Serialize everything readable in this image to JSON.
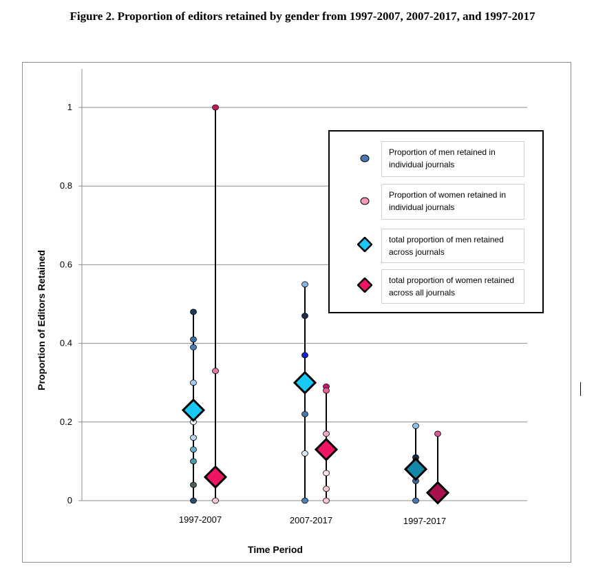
{
  "figure": {
    "title": "Figure 2. Proportion of editors retained by gender from 1997-2007, 2007-2017, and 1997-2017"
  },
  "chart_data": {
    "type": "scatter",
    "xlabel": "Time Period",
    "ylabel": "Proportion of Editors Retained",
    "ylim": [
      0,
      1.1
    ],
    "yticks": [
      0,
      0.2,
      0.4,
      0.6,
      0.8,
      1
    ],
    "ytick_labels": [
      "0",
      "0.2",
      "0.4",
      "0.6",
      "0.8",
      "1"
    ],
    "categories": [
      "1997-2007",
      "2007-2017",
      "1997-2017"
    ],
    "grid": true,
    "legend_position": "top-right",
    "legend": [
      "Proportion  of men retained in individual  journals",
      "Proportion  of women retained in individual  journals",
      "total proportion  of men retained across journals",
      "total proportion  of women retained across all journals"
    ],
    "men_individual": [
      [
        0.48,
        0.41,
        0.39,
        0.3,
        0.2,
        0.16,
        0.13,
        0.1,
        0.04,
        0.0
      ],
      [
        0.55,
        0.47,
        0.37,
        0.22,
        0.12,
        0.0
      ],
      [
        0.19,
        0.11,
        0.1,
        0.05,
        0.0
      ]
    ],
    "women_individual": [
      [
        1.0,
        0.33,
        0.0
      ],
      [
        0.29,
        0.28,
        0.17,
        0.07,
        0.03,
        0.0
      ],
      [
        0.17
      ]
    ],
    "men_total": [
      0.23,
      0.3,
      0.08
    ],
    "women_total": [
      0.06,
      0.13,
      0.02
    ],
    "colors": {
      "men_individual": [
        "#1f3a5a",
        "#3f6ea8",
        "#4a7fba",
        "#a9c7ea",
        "#e8f0fa",
        "#bcd6f2",
        "#6ab0c9",
        "#4a9aa8",
        "#4d5e60",
        "#2e4a6e",
        "#8fb4e0",
        "#1d2f4a",
        "#1a24c8",
        "#4a78b0",
        "#d8eaf5",
        "#4f7fb8",
        "#8fc1e6",
        "#1c2a3c",
        "#2e4a6e",
        "#3b6a9a",
        "#4a78b0"
      ],
      "women_individual": [
        "#c2185b",
        "#e07aa6",
        "#f7c6d4",
        "#c2186e",
        "#e8609a",
        "#f0a8c8",
        "#fde2ec",
        "#f6c8cc",
        "#f8c9d4",
        "#d85c98"
      ],
      "men_total": [
        "#1ac8f5",
        "#1ac8f5",
        "#1587a8"
      ],
      "women_total": [
        "#f01464",
        "#f01464",
        "#a8124c"
      ],
      "legend_men_individual": "#4a78b0",
      "legend_women_individual": "#f29ab6",
      "legend_men_total": "#1ac8f5",
      "legend_women_total": "#f01464"
    }
  }
}
